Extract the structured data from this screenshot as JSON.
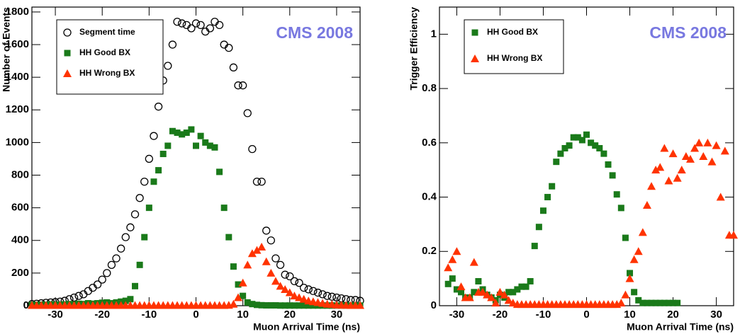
{
  "chart_data": [
    {
      "type": "scatter",
      "x": [
        -35,
        -34,
        -33,
        -32,
        -31,
        -30,
        -29,
        -28,
        -27,
        -26,
        -25,
        -24,
        -23,
        -22,
        -21,
        -20,
        -19,
        -18,
        -17,
        -16,
        -15,
        -14,
        -13,
        -12,
        -11,
        -10,
        -9,
        -8,
        -7,
        -6,
        -5,
        -4,
        -3,
        -2,
        -1,
        0,
        1,
        2,
        3,
        4,
        5,
        6,
        7,
        8,
        9,
        10,
        11,
        12,
        13,
        14,
        15,
        16,
        17,
        18,
        19,
        20,
        21,
        22,
        23,
        24,
        25,
        26,
        27,
        28,
        29,
        30,
        31,
        32,
        33,
        34,
        35
      ],
      "series": [
        {
          "name": "Segment time",
          "color": "#000000",
          "marker": "circle-open",
          "values": [
            10,
            12,
            15,
            18,
            20,
            22,
            25,
            30,
            40,
            50,
            60,
            70,
            90,
            110,
            130,
            160,
            200,
            250,
            290,
            350,
            420,
            480,
            560,
            660,
            760,
            900,
            1040,
            1220,
            1380,
            1470,
            1600,
            1740,
            1730,
            1720,
            1700,
            1730,
            1720,
            1680,
            1700,
            1740,
            1720,
            1600,
            1580,
            1460,
            1350,
            1350,
            1180,
            960,
            760,
            760,
            460,
            400,
            290,
            250,
            190,
            180,
            150,
            140,
            110,
            100,
            90,
            80,
            70,
            60,
            55,
            50,
            45,
            40,
            35,
            35,
            30
          ]
        },
        {
          "name": "HH Good BX",
          "color": "#1a7a1a",
          "marker": "square",
          "values": [
            5,
            5,
            6,
            5,
            8,
            6,
            7,
            8,
            10,
            8,
            12,
            10,
            15,
            12,
            15,
            18,
            20,
            15,
            20,
            25,
            30,
            40,
            120,
            250,
            420,
            600,
            760,
            830,
            930,
            980,
            1070,
            1060,
            1050,
            1060,
            1080,
            980,
            1040,
            1000,
            980,
            970,
            820,
            600,
            420,
            240,
            130,
            60,
            20,
            10,
            5,
            3,
            2,
            2,
            2,
            1,
            1,
            1,
            1,
            1,
            1,
            1,
            1,
            1,
            1,
            1,
            1,
            1,
            1,
            1,
            1,
            1,
            1
          ]
        },
        {
          "name": "HH Wrong BX",
          "color": "#ff3300",
          "marker": "triangle",
          "values": [
            2,
            2,
            2,
            2,
            2,
            2,
            2,
            2,
            2,
            2,
            2,
            2,
            2,
            2,
            2,
            2,
            2,
            2,
            2,
            2,
            2,
            2,
            2,
            2,
            2,
            2,
            2,
            2,
            2,
            2,
            2,
            2,
            2,
            2,
            2,
            2,
            2,
            2,
            2,
            2,
            2,
            2,
            3,
            10,
            50,
            140,
            250,
            320,
            340,
            360,
            270,
            200,
            150,
            120,
            100,
            80,
            60,
            50,
            40,
            30,
            25,
            20,
            15,
            10,
            8,
            5,
            4,
            3,
            2,
            2,
            2
          ]
        }
      ],
      "xlim": [
        -35,
        35
      ],
      "ylim": [
        0,
        1830
      ],
      "xticks": [
        -30,
        -20,
        -10,
        0,
        10,
        20,
        30
      ],
      "yticks": [
        0,
        200,
        400,
        600,
        800,
        1000,
        1200,
        1400,
        1600,
        1800
      ],
      "xlabel": "Muon Arrival Time (ns)",
      "ylabel": "Number of Events",
      "annotation": "CMS 2008",
      "legend": "upper left"
    },
    {
      "type": "scatter",
      "x": [
        -32,
        -31,
        -30,
        -29,
        -28,
        -27,
        -26,
        -25,
        -24,
        -23,
        -22,
        -21,
        -20,
        -19,
        -18,
        -17,
        -16,
        -15,
        -14,
        -13,
        -12,
        -11,
        -10,
        -9,
        -8,
        -7,
        -6,
        -5,
        -4,
        -3,
        -2,
        -1,
        0,
        1,
        2,
        3,
        4,
        5,
        6,
        7,
        8,
        9,
        10,
        11,
        12,
        13,
        14,
        15,
        16,
        17,
        18,
        19,
        20,
        21,
        22,
        23,
        24,
        25,
        26,
        27,
        28,
        29,
        30,
        31,
        32,
        33,
        34
      ],
      "series": [
        {
          "name": "HH Good BX",
          "color": "#1a7a1a",
          "marker": "square",
          "values": [
            0.08,
            0.1,
            0.06,
            0.05,
            0.03,
            0.03,
            0.05,
            0.09,
            0.06,
            0.04,
            0.03,
            0.02,
            0.04,
            0.03,
            0.05,
            0.05,
            0.06,
            0.07,
            0.07,
            0.09,
            0.22,
            0.29,
            0.35,
            0.4,
            0.44,
            0.53,
            0.56,
            0.58,
            0.59,
            0.62,
            0.62,
            0.61,
            0.63,
            0.6,
            0.59,
            0.58,
            0.56,
            0.52,
            0.48,
            0.41,
            0.36,
            0.25,
            0.12,
            0.05,
            0.02,
            0.01,
            0.01,
            0.01,
            0.01,
            0.01,
            0.01,
            0.01,
            0.01,
            0.01,
            null,
            null,
            null,
            null,
            null,
            null,
            null,
            null,
            null,
            null,
            null,
            null,
            null
          ]
        },
        {
          "name": "HH Wrong BX",
          "color": "#ff3300",
          "marker": "triangle",
          "values": [
            0.14,
            0.17,
            0.2,
            0.07,
            0.03,
            0.03,
            0.16,
            0.05,
            0.05,
            0.04,
            0.03,
            0.01,
            0.05,
            0.04,
            0.02,
            0.01,
            0.005,
            0.005,
            0.005,
            0.005,
            0.005,
            0.005,
            0.005,
            0.005,
            0.005,
            0.005,
            0.005,
            0.005,
            0.005,
            0.005,
            0.005,
            0.005,
            0.005,
            0.005,
            0.005,
            0.005,
            0.005,
            0.005,
            0.005,
            0.005,
            0.01,
            0.04,
            0.1,
            0.17,
            0.2,
            0.27,
            0.37,
            0.44,
            0.5,
            0.51,
            0.58,
            0.46,
            0.56,
            0.47,
            0.5,
            0.55,
            0.54,
            0.58,
            0.6,
            0.55,
            0.6,
            0.53,
            0.59,
            0.4,
            0.57,
            0.26,
            0.26
          ]
        }
      ],
      "xlim": [
        -34,
        34
      ],
      "ylim": [
        0,
        1.1
      ],
      "xticks": [
        -30,
        -20,
        -10,
        0,
        10,
        20,
        30
      ],
      "yticks": [
        0,
        0.2,
        0.4,
        0.6,
        0.8,
        1
      ],
      "xlabel": "Muon Arrival Time (ns)",
      "ylabel": "Trigger Efficiency",
      "annotation": "CMS 2008",
      "legend": "upper left"
    }
  ]
}
